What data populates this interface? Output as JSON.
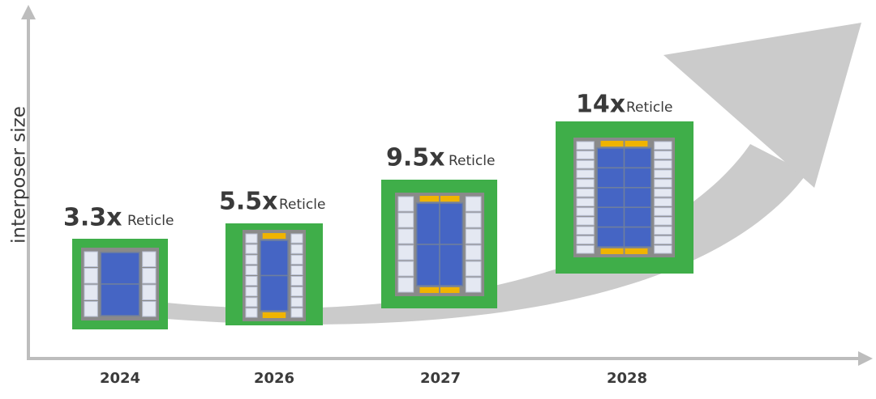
{
  "y_axis_label": "interposer size",
  "packages": [
    {
      "year": "2024",
      "multiplier": "3.3x",
      "unit": "Reticle"
    },
    {
      "year": "2026",
      "multiplier": "5.5x",
      "unit": "Reticle"
    },
    {
      "year": "2027",
      "multiplier": "9.5x",
      "unit": "Reticle"
    },
    {
      "year": "2028",
      "multiplier": "14x",
      "unit": "Reticle"
    }
  ]
}
